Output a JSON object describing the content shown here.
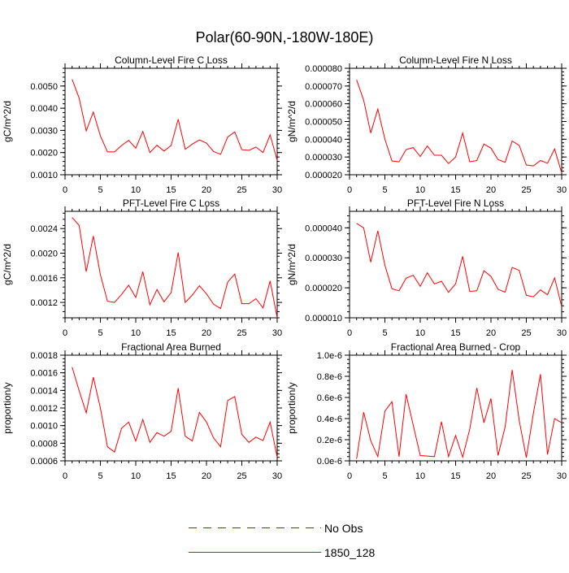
{
  "title": "Polar(60-90N,-180W-180E)",
  "legend": {
    "items": [
      {
        "label": "No Obs",
        "color": "#3333cc",
        "style": "dashed"
      },
      {
        "label": "1850_128",
        "color": "#ff0000",
        "style": "solid"
      }
    ]
  },
  "chart_data": [
    {
      "type": "line",
      "title": "Column-Level Fire C Loss",
      "ylabel": "gC/m^2/d",
      "xlim": [
        0,
        30
      ],
      "ylim": [
        0.001,
        0.0058
      ],
      "xticks": [
        0,
        5,
        10,
        15,
        20,
        25,
        30
      ],
      "xtick_labels": [
        "0",
        "5",
        "10",
        "15",
        "20",
        "25",
        "30"
      ],
      "yticks": [
        0.001,
        0.002,
        0.003,
        0.004,
        0.005
      ],
      "ytick_labels": [
        "0.0010",
        "0.0020",
        "0.0030",
        "0.0040",
        "0.0050"
      ],
      "yminor": 0.0002,
      "series": [
        {
          "name": "1850_128",
          "color": "#ff0000",
          "x": [
            1,
            2,
            3,
            4,
            5,
            6,
            7,
            8,
            9,
            10,
            11,
            12,
            13,
            14,
            15,
            16,
            17,
            18,
            19,
            20,
            21,
            22,
            23,
            24,
            25,
            26,
            27,
            28,
            29,
            30
          ],
          "values": [
            0.0053,
            0.00445,
            0.00298,
            0.00383,
            0.00275,
            0.00203,
            0.00203,
            0.00232,
            0.00255,
            0.0022,
            0.00295,
            0.002,
            0.00233,
            0.00207,
            0.00232,
            0.0035,
            0.00215,
            0.00238,
            0.00257,
            0.00243,
            0.00205,
            0.00192,
            0.0027,
            0.00293,
            0.00213,
            0.0021,
            0.00225,
            0.002,
            0.0028,
            0.00165
          ]
        }
      ]
    },
    {
      "type": "line",
      "title": "Column-Level Fire N Loss",
      "ylabel": "gN/m^2/d",
      "xlim": [
        0,
        30
      ],
      "ylim": [
        2e-05,
        8e-05
      ],
      "xticks": [
        0,
        5,
        10,
        15,
        20,
        25,
        30
      ],
      "xtick_labels": [
        "0",
        "5",
        "10",
        "15",
        "20",
        "25",
        "30"
      ],
      "yticks": [
        2e-05,
        3e-05,
        4e-05,
        5e-05,
        6e-05,
        7e-05,
        8e-05
      ],
      "ytick_labels": [
        "0.000020",
        "0.000030",
        "0.000040",
        "0.000050",
        "0.000060",
        "0.000070",
        "0.000080"
      ],
      "yminor": 2e-06,
      "series": [
        {
          "name": "1850_128",
          "color": "#ff0000",
          "x": [
            1,
            2,
            3,
            4,
            5,
            6,
            7,
            8,
            9,
            10,
            11,
            12,
            13,
            14,
            15,
            16,
            17,
            18,
            19,
            20,
            21,
            22,
            23,
            24,
            25,
            26,
            27,
            28,
            29,
            30
          ],
          "values": [
            7.35e-05,
            6.2e-05,
            4.35e-05,
            5.7e-05,
            4e-05,
            2.78e-05,
            2.73e-05,
            3.42e-05,
            3.53e-05,
            3.03e-05,
            3.62e-05,
            3.1e-05,
            3.1e-05,
            2.63e-05,
            3e-05,
            4.35e-05,
            2.73e-05,
            2.8e-05,
            3.73e-05,
            3.5e-05,
            2.85e-05,
            2.7e-05,
            3.9e-05,
            3.65e-05,
            2.55e-05,
            2.5e-05,
            2.8e-05,
            2.65e-05,
            3.45e-05,
            2.1e-05
          ]
        }
      ]
    },
    {
      "type": "line",
      "title": "PFT-Level Fire C Loss",
      "ylabel": "gC/m^2/d",
      "xlim": [
        0,
        30
      ],
      "ylim": [
        0.00095,
        0.00268
      ],
      "xticks": [
        0,
        5,
        10,
        15,
        20,
        25,
        30
      ],
      "xtick_labels": [
        "0",
        "5",
        "10",
        "15",
        "20",
        "25",
        "30"
      ],
      "yticks": [
        0.0012,
        0.0016,
        0.002,
        0.0024
      ],
      "ytick_labels": [
        "0.0012",
        "0.0016",
        "0.0020",
        "0.0024"
      ],
      "yminor": 0.0001,
      "series": [
        {
          "name": "1850_128",
          "color": "#ff0000",
          "x": [
            1,
            2,
            3,
            4,
            5,
            6,
            7,
            8,
            9,
            10,
            11,
            12,
            13,
            14,
            15,
            16,
            17,
            18,
            19,
            20,
            21,
            22,
            23,
            24,
            25,
            26,
            27,
            28,
            29,
            30
          ],
          "values": [
            0.00258,
            0.00245,
            0.0017,
            0.00228,
            0.00165,
            0.00122,
            0.0012,
            0.00133,
            0.00148,
            0.00128,
            0.0017,
            0.00116,
            0.00141,
            0.00121,
            0.00136,
            0.00201,
            0.0012,
            0.00132,
            0.00147,
            0.00134,
            0.00117,
            0.0011,
            0.00153,
            0.00166,
            0.00118,
            0.00118,
            0.00126,
            0.00111,
            0.00155,
            0.00095
          ]
        }
      ]
    },
    {
      "type": "line",
      "title": "PFT-Level Fire N Loss",
      "ylabel": "gN/m^2/d",
      "xlim": [
        0,
        30
      ],
      "ylim": [
        1e-05,
        4.55e-05
      ],
      "xticks": [
        0,
        5,
        10,
        15,
        20,
        25,
        30
      ],
      "xtick_labels": [
        "0",
        "5",
        "10",
        "15",
        "20",
        "25",
        "30"
      ],
      "yticks": [
        1e-05,
        2e-05,
        3e-05,
        4e-05
      ],
      "ytick_labels": [
        "0.000010",
        "0.000020",
        "0.000030",
        "0.000040"
      ],
      "yminor": 2e-06,
      "series": [
        {
          "name": "1850_128",
          "color": "#ff0000",
          "x": [
            1,
            2,
            3,
            4,
            5,
            6,
            7,
            8,
            9,
            10,
            11,
            12,
            13,
            14,
            15,
            16,
            17,
            18,
            19,
            20,
            21,
            22,
            23,
            24,
            25,
            26,
            27,
            28,
            29,
            30
          ],
          "values": [
            4.15e-05,
            4e-05,
            2.85e-05,
            3.9e-05,
            2.75e-05,
            1.97e-05,
            1.9e-05,
            2.32e-05,
            2.42e-05,
            2.05e-05,
            2.5e-05,
            2.13e-05,
            2.22e-05,
            1.85e-05,
            2.13e-05,
            3.05e-05,
            1.88e-05,
            1.9e-05,
            2.57e-05,
            2.38e-05,
            1.95e-05,
            1.85e-05,
            2.68e-05,
            2.58e-05,
            1.75e-05,
            1.7e-05,
            1.93e-05,
            1.77e-05,
            2.33e-05,
            1.37e-05
          ]
        }
      ]
    },
    {
      "type": "line",
      "title": "Fractional Area Burned",
      "ylabel": "proportion/y",
      "xlim": [
        0,
        30
      ],
      "ylim": [
        0.0006,
        0.0018
      ],
      "xticks": [
        0,
        5,
        10,
        15,
        20,
        25,
        30
      ],
      "xtick_labels": [
        "0",
        "5",
        "10",
        "15",
        "20",
        "25",
        "30"
      ],
      "yticks": [
        0.0006,
        0.0008,
        0.001,
        0.0012,
        0.0014,
        0.0016,
        0.0018
      ],
      "ytick_labels": [
        "0.0006",
        "0.0008",
        "0.0010",
        "0.0012",
        "0.0014",
        "0.0016",
        "0.0018"
      ],
      "yminor": 4e-05,
      "series": [
        {
          "name": "1850_128",
          "color": "#ff0000",
          "x": [
            1,
            2,
            3,
            4,
            5,
            6,
            7,
            8,
            9,
            10,
            11,
            12,
            13,
            14,
            15,
            16,
            17,
            18,
            19,
            20,
            21,
            22,
            23,
            24,
            25,
            26,
            27,
            28,
            29,
            30
          ],
          "values": [
            0.001665,
            0.001395,
            0.001145,
            0.00155,
            0.0012,
            0.00076,
            0.0007,
            0.00097,
            0.00104,
            0.000825,
            0.00107,
            0.00081,
            0.00092,
            0.00088,
            0.000935,
            0.001425,
            0.00088,
            0.000825,
            0.00115,
            0.00104,
            0.00086,
            0.00076,
            0.001285,
            0.00133,
            0.0009,
            0.00081,
            0.00087,
            0.00083,
            0.00104,
            0.00064
          ]
        }
      ]
    },
    {
      "type": "line",
      "title": "Fractional Area Burned - Crop",
      "ylabel": "proportion/y",
      "xlim": [
        0,
        30
      ],
      "ylim": [
        0,
        1e-06
      ],
      "xticks": [
        0,
        5,
        10,
        15,
        20,
        25,
        30
      ],
      "xtick_labels": [
        "0",
        "5",
        "10",
        "15",
        "20",
        "25",
        "30"
      ],
      "yticks": [
        0,
        2e-07,
        4e-07,
        6e-07,
        8e-07,
        1e-06
      ],
      "ytick_labels": [
        "0.0e-6",
        "0.2e-6",
        "0.4e-6",
        "0.6e-6",
        "0.8e-6",
        "1.0e-6"
      ],
      "yminor": 4e-08,
      "series": [
        {
          "name": "1850_128",
          "color": "#ff0000",
          "x": [
            1,
            2,
            3,
            4,
            5,
            6,
            7,
            8,
            9,
            10,
            11,
            12,
            13,
            14,
            15,
            16,
            17,
            18,
            19,
            20,
            21,
            22,
            23,
            24,
            25,
            26,
            27,
            28,
            29,
            30
          ],
          "values": [
            2e-08,
            4.6e-07,
            1.9e-07,
            4e-08,
            4.7e-07,
            5.6e-07,
            4e-08,
            6.3e-07,
            3.4e-07,
            5e-08,
            4.5e-08,
            4e-08,
            3.7e-07,
            4e-08,
            2.4e-07,
            3.5e-08,
            3e-07,
            6.9e-07,
            3.6e-07,
            5.9e-07,
            5e-08,
            3.2e-07,
            8.6e-07,
            3.8e-07,
            3e-08,
            4.5e-07,
            8.2e-07,
            6e-08,
            4e-07,
            3.6e-07
          ]
        }
      ]
    }
  ]
}
